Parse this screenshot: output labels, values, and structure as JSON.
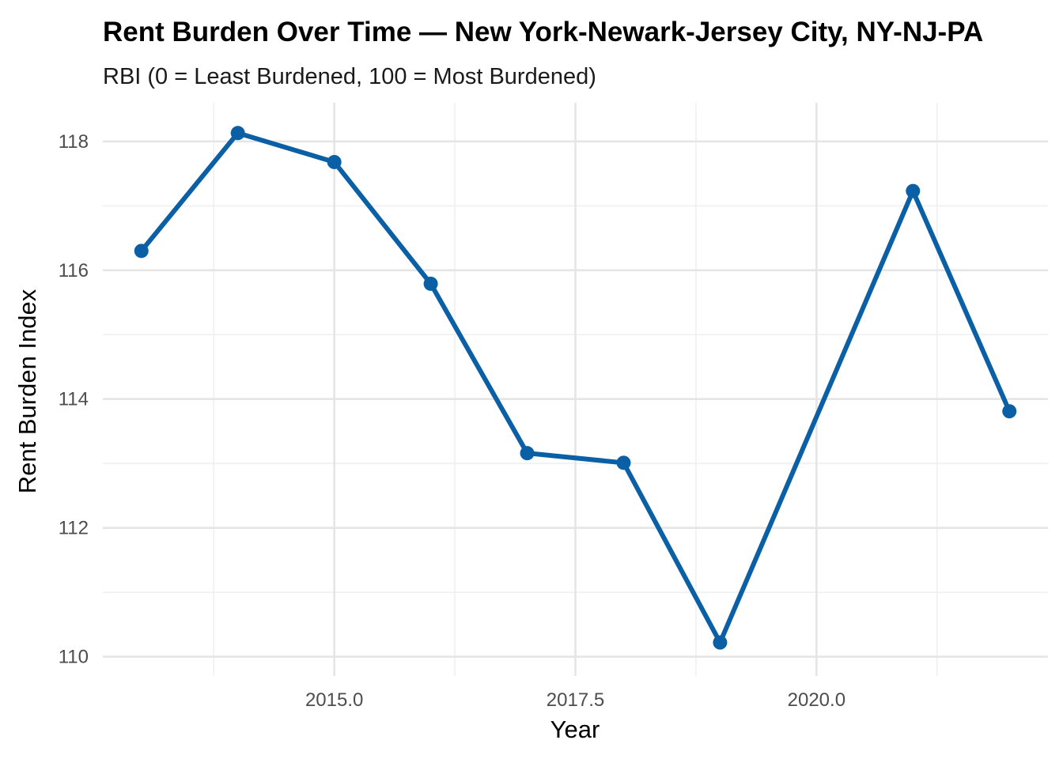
{
  "chart_data": {
    "type": "line",
    "title": "Rent Burden Over Time — New York-Newark-Jersey City, NY-NJ-PA",
    "subtitle": "RBI (0 = Least Burdened, 100 = Most Burdened)",
    "xlabel": "Year",
    "ylabel": "Rent Burden Index",
    "xlim": [
      2012.6,
      2022.4
    ],
    "ylim": [
      109.7,
      118.6
    ],
    "x_ticks": [
      2015.0,
      2017.5,
      2020.0
    ],
    "x_tick_labels": [
      "2015.0",
      "2017.5",
      "2020.0"
    ],
    "y_ticks": [
      110,
      112,
      114,
      116,
      118
    ],
    "y_tick_labels": [
      "110",
      "112",
      "114",
      "116",
      "118"
    ],
    "grid": true,
    "legend": "none",
    "series": [
      {
        "color": "#0b5fa5",
        "x": [
          2013,
          2014,
          2015,
          2016,
          2017,
          2018,
          2019,
          2021,
          2022
        ],
        "y": [
          116.3,
          118.13,
          117.68,
          115.79,
          113.16,
          113.01,
          110.22,
          117.23,
          113.81
        ]
      }
    ]
  }
}
